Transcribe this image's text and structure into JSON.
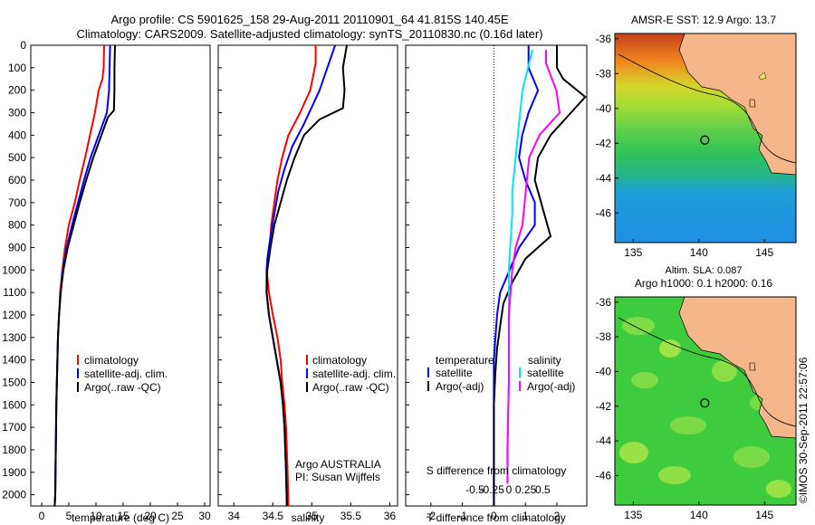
{
  "title": {
    "line1": "Argo profile: CS 5901625_158 29-Aug-2011 20110901_64 41.815S 140.45E",
    "line2": "Climatology: CARS2009. Satellite-adjusted climatology: synTS_20110830.nc (0.16d later)"
  },
  "colors": {
    "climatology": "#ff0000",
    "satellite": "#0000ff",
    "argo": "#000000",
    "sal_satellite": "#00e5ee",
    "sal_argo": "#ff00ff",
    "land": "#f5b68a"
  },
  "depth_axis": {
    "min": 0,
    "max": 2050,
    "ticks": [
      0,
      100,
      200,
      300,
      400,
      500,
      600,
      700,
      800,
      900,
      1000,
      1100,
      1200,
      1300,
      1400,
      1500,
      1600,
      1700,
      1800,
      1900,
      2000
    ]
  },
  "chart_data": [
    {
      "type": "line",
      "name": "temperature-profile",
      "xlabel": "temperature (deg C)",
      "xlim": [
        -2,
        31
      ],
      "xticks": [
        0,
        5,
        10,
        15,
        20,
        25,
        30
      ],
      "legend": [
        "climatology",
        "satellite-adj. clim.",
        "Argo(..raw -QC)"
      ],
      "series": [
        {
          "name": "climatology",
          "color": "#ff0000",
          "points": [
            [
              11.5,
              0
            ],
            [
              11.4,
              100
            ],
            [
              11.2,
              150
            ],
            [
              10.5,
              200
            ],
            [
              9.8,
              300
            ],
            [
              8.9,
              400
            ],
            [
              8.0,
              500
            ],
            [
              7.0,
              600
            ],
            [
              6.1,
              700
            ],
            [
              5.0,
              800
            ],
            [
              4.3,
              900
            ],
            [
              3.8,
              1000
            ],
            [
              3.4,
              1100
            ],
            [
              3.2,
              1200
            ],
            [
              3.0,
              1300
            ],
            [
              2.9,
              1400
            ],
            [
              2.8,
              1500
            ],
            [
              2.7,
              1600
            ],
            [
              2.6,
              1800
            ],
            [
              2.5,
              2000
            ],
            [
              2.4,
              2050
            ]
          ]
        },
        {
          "name": "satellite-adj. clim.",
          "color": "#0000ff",
          "points": [
            [
              12.6,
              0
            ],
            [
              12.5,
              100
            ],
            [
              12.4,
              200
            ],
            [
              12.0,
              300
            ],
            [
              10.5,
              400
            ],
            [
              9.0,
              500
            ],
            [
              7.8,
              600
            ],
            [
              6.7,
              700
            ],
            [
              5.6,
              800
            ],
            [
              4.6,
              900
            ],
            [
              3.9,
              1000
            ],
            [
              3.5,
              1100
            ],
            [
              3.2,
              1200
            ],
            [
              3.0,
              1300
            ],
            [
              2.9,
              1400
            ],
            [
              2.8,
              1500
            ],
            [
              2.7,
              1600
            ],
            [
              2.6,
              1800
            ],
            [
              2.5,
              2000
            ],
            [
              2.4,
              2050
            ]
          ]
        },
        {
          "name": "Argo(..raw -QC)",
          "color": "#000000",
          "points": [
            [
              13.5,
              0
            ],
            [
              13.4,
              100
            ],
            [
              13.4,
              200
            ],
            [
              13.3,
              290
            ],
            [
              12.2,
              320
            ],
            [
              11.0,
              400
            ],
            [
              9.5,
              500
            ],
            [
              8.2,
              600
            ],
            [
              7.0,
              700
            ],
            [
              5.9,
              800
            ],
            [
              4.8,
              900
            ],
            [
              4.0,
              1000
            ],
            [
              3.5,
              1100
            ],
            [
              3.2,
              1200
            ],
            [
              3.0,
              1300
            ],
            [
              2.9,
              1400
            ],
            [
              2.8,
              1500
            ],
            [
              2.7,
              1600
            ],
            [
              2.6,
              1800
            ],
            [
              2.5,
              2000
            ],
            [
              2.4,
              2050
            ]
          ]
        }
      ]
    },
    {
      "type": "line",
      "name": "salinity-profile",
      "xlabel": "salinity",
      "xlim": [
        33.8,
        36.1
      ],
      "xticks": [
        34,
        34.5,
        35,
        35.5,
        36
      ],
      "legend": [
        "climatology",
        "satellite-adj. clim.",
        "Argo(..raw -QC)"
      ],
      "series": [
        {
          "name": "climatology",
          "color": "#ff0000",
          "points": [
            [
              35.05,
              0
            ],
            [
              35.05,
              80
            ],
            [
              34.98,
              200
            ],
            [
              34.85,
              300
            ],
            [
              34.7,
              400
            ],
            [
              34.62,
              500
            ],
            [
              34.56,
              600
            ],
            [
              34.52,
              700
            ],
            [
              34.48,
              800
            ],
            [
              34.46,
              900
            ],
            [
              34.42,
              1000
            ],
            [
              34.45,
              1100
            ],
            [
              34.5,
              1200
            ],
            [
              34.56,
              1300
            ],
            [
              34.6,
              1400
            ],
            [
              34.62,
              1500
            ],
            [
              34.65,
              1600
            ],
            [
              34.67,
              1700
            ],
            [
              34.69,
              1900
            ],
            [
              34.7,
              2050
            ]
          ]
        },
        {
          "name": "satellite-adj. clim.",
          "color": "#0000ff",
          "points": [
            [
              35.3,
              0
            ],
            [
              35.2,
              100
            ],
            [
              35.1,
              200
            ],
            [
              34.9,
              350
            ],
            [
              34.75,
              450
            ],
            [
              34.65,
              550
            ],
            [
              34.57,
              650
            ],
            [
              34.52,
              750
            ],
            [
              34.47,
              850
            ],
            [
              34.43,
              950
            ],
            [
              34.42,
              1000
            ],
            [
              34.42,
              1100
            ],
            [
              34.45,
              1200
            ],
            [
              34.5,
              1300
            ],
            [
              34.55,
              1400
            ],
            [
              34.6,
              1500
            ],
            [
              34.63,
              1600
            ],
            [
              34.65,
              1700
            ],
            [
              34.67,
              1900
            ],
            [
              34.68,
              2050
            ]
          ]
        },
        {
          "name": "Argo(..raw -QC)",
          "color": "#000000",
          "points": [
            [
              35.45,
              0
            ],
            [
              35.4,
              100
            ],
            [
              35.42,
              200
            ],
            [
              35.4,
              280
            ],
            [
              35.1,
              330
            ],
            [
              34.9,
              400
            ],
            [
              34.78,
              500
            ],
            [
              34.68,
              600
            ],
            [
              34.6,
              700
            ],
            [
              34.52,
              800
            ],
            [
              34.47,
              900
            ],
            [
              34.43,
              1000
            ],
            [
              34.42,
              1100
            ],
            [
              34.45,
              1200
            ],
            [
              34.5,
              1300
            ],
            [
              34.55,
              1400
            ],
            [
              34.6,
              1500
            ],
            [
              34.63,
              1600
            ],
            [
              34.65,
              1700
            ],
            [
              34.67,
              1900
            ],
            [
              34.68,
              2050
            ]
          ]
        }
      ]
    },
    {
      "type": "line",
      "name": "difference-profile",
      "xlabel": "T difference from climatology",
      "top_label": "S difference from climatology",
      "xlim": [
        -2.8,
        2.95
      ],
      "xticks": [
        -2,
        -1,
        0,
        1,
        2
      ],
      "sticks": [
        -0.5,
        -0.25,
        0,
        0.25,
        0.5
      ],
      "legend_headers": [
        "temperature",
        "salinity"
      ],
      "legend_items": [
        "satellite",
        "Argo(-adj)",
        "satellite",
        "Argo(-adj)"
      ],
      "series": [
        {
          "name": "temperature satellite",
          "color": "#0000ff",
          "points": [
            [
              1.1,
              0
            ],
            [
              1.1,
              100
            ],
            [
              1.4,
              200
            ],
            [
              1.1,
              300
            ],
            [
              0.9,
              400
            ],
            [
              0.8,
              500
            ],
            [
              1.0,
              600
            ],
            [
              1.3,
              700
            ],
            [
              1.3,
              800
            ],
            [
              0.8,
              900
            ],
            [
              0.5,
              1000
            ],
            [
              0.2,
              1100
            ],
            [
              0.1,
              1200
            ],
            [
              0.05,
              1300
            ],
            [
              0.0,
              1400
            ],
            [
              0.0,
              1600
            ],
            [
              0.0,
              2050
            ]
          ]
        },
        {
          "name": "temperature Argo(-adj)",
          "color": "#000000",
          "points": [
            [
              2.0,
              0
            ],
            [
              2.0,
              100
            ],
            [
              2.2,
              150
            ],
            [
              2.9,
              230
            ],
            [
              1.8,
              400
            ],
            [
              1.4,
              500
            ],
            [
              1.3,
              600
            ],
            [
              1.6,
              750
            ],
            [
              1.8,
              850
            ],
            [
              1.0,
              950
            ],
            [
              0.6,
              1050
            ],
            [
              0.3,
              1150
            ],
            [
              0.2,
              1250
            ],
            [
              0.1,
              1350
            ],
            [
              0.05,
              1450
            ],
            [
              0.0,
              1600
            ],
            [
              0.0,
              2050
            ]
          ]
        },
        {
          "name": "salinity satellite",
          "color": "#00e5ee",
          "points": [
            [
              0.35,
              20
            ],
            [
              0.3,
              80
            ],
            [
              0.2,
              200
            ],
            [
              0.15,
              350
            ],
            [
              0.1,
              500
            ],
            [
              0.05,
              650
            ],
            [
              0.05,
              750
            ],
            [
              0.02,
              900
            ],
            [
              0.0,
              1000
            ],
            [
              0.0,
              1200
            ],
            [
              0.0,
              1500
            ],
            [
              -0.02,
              1800
            ],
            [
              -0.02,
              1950
            ]
          ]
        },
        {
          "name": "salinity Argo(-adj)",
          "color": "#ff00ff",
          "points": [
            [
              0.55,
              20
            ],
            [
              0.55,
              80
            ],
            [
              0.7,
              200
            ],
            [
              0.75,
              300
            ],
            [
              0.45,
              400
            ],
            [
              0.3,
              500
            ],
            [
              0.25,
              650
            ],
            [
              0.2,
              800
            ],
            [
              0.1,
              900
            ],
            [
              0.05,
              1000
            ],
            [
              0.0,
              1200
            ],
            [
              0.0,
              1500
            ],
            [
              -0.02,
              1800
            ],
            [
              -0.02,
              1950
            ]
          ]
        }
      ]
    }
  ],
  "annotation": {
    "argo_line1": "Argo AUSTRALIA",
    "argo_line2": "PI: Susan Wijffels"
  },
  "maps": {
    "sst_title": "AMSR-E SST: 12.9 Argo: 13.7",
    "sla_title1": "Altim. SLA: 0.087",
    "sla_title2": "Argo h1000: 0.1 h2000: 0.16",
    "lat_ticks": [
      -36,
      -38,
      -40,
      -42,
      -44,
      -46
    ],
    "lon_ticks": [
      135,
      140,
      145
    ],
    "lon_range": [
      133.6,
      147.4
    ],
    "lat_range": [
      -47.7,
      -35.7
    ],
    "float_position": {
      "lon": 140.45,
      "lat": -41.815
    }
  },
  "credit": "©IMOS 30-Sep-2011 22:57:06"
}
